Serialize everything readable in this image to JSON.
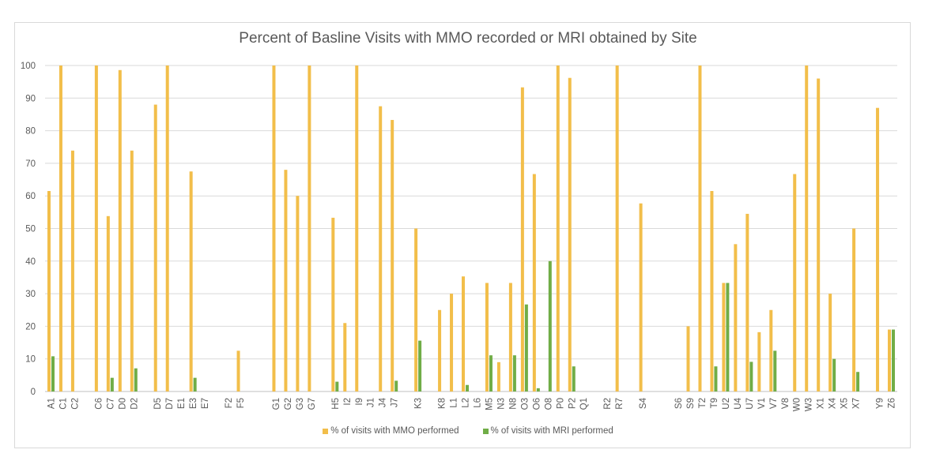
{
  "chart_data": {
    "type": "bar",
    "title": "Percent of Basline Visits with MMO recorded or MRI obtained by Site",
    "xlabel": "",
    "ylabel": "",
    "ylim": [
      0,
      100
    ],
    "yticks": [
      "0",
      "10",
      "20",
      "30",
      "40",
      "50",
      "60",
      "70",
      "80",
      "90",
      "100"
    ],
    "grid": true,
    "legend_position": "bottom",
    "categories": [
      "A1",
      "C1",
      "C2",
      "",
      "C6",
      "C7",
      "D0",
      "D2",
      "",
      "D5",
      "D7",
      "E1",
      "E3",
      "E7",
      "",
      "F2",
      "F5",
      "",
      "",
      "G1",
      "G2",
      "G3",
      "G7",
      "",
      "H5",
      "I2",
      "I9",
      "J1",
      "J4",
      "J7",
      "",
      "K3",
      "",
      "K8",
      "L1",
      "L2",
      "L6",
      "M5",
      "N3",
      "N8",
      "O3",
      "O6",
      "O8",
      "P0",
      "P2",
      "Q1",
      "",
      "R2",
      "R7",
      "",
      "S4",
      "",
      "",
      "S6",
      "S9",
      "T2",
      "T9",
      "U2",
      "U4",
      "U7",
      "V1",
      "V7",
      "V8",
      "W0",
      "W3",
      "X1",
      "X4",
      "X5",
      "X7",
      "",
      "Y9",
      "Z6"
    ],
    "series": [
      {
        "name": "% of visits with MMO performed",
        "color": "#F2BE4A",
        "values": [
          61.5,
          100,
          73.9,
          null,
          100,
          53.8,
          98.6,
          73.9,
          null,
          88,
          100,
          0,
          67.5,
          0,
          null,
          0,
          12.5,
          null,
          null,
          100,
          68,
          60,
          100,
          null,
          53.3,
          21,
          100,
          0,
          87.5,
          83.3,
          null,
          50,
          null,
          25,
          30,
          35.3,
          0,
          33.3,
          9,
          33.3,
          93.3,
          66.7,
          0,
          100,
          96.2,
          0,
          null,
          0,
          100,
          null,
          57.7,
          null,
          null,
          0,
          20,
          100,
          61.5,
          33.3,
          45.2,
          54.5,
          18.2,
          25,
          0,
          66.7,
          100,
          96,
          30,
          0,
          50,
          null,
          87,
          19
        ]
      },
      {
        "name": "% of visits with MRI performed",
        "color": "#70AD47",
        "values": [
          10.8,
          0,
          0,
          null,
          0,
          4.2,
          0,
          7.1,
          null,
          0,
          0,
          0,
          4.2,
          0,
          null,
          0,
          0,
          null,
          null,
          0,
          0,
          0,
          0,
          null,
          3,
          0,
          0,
          0,
          0,
          3.3,
          null,
          15.6,
          null,
          0,
          0,
          2,
          0,
          11.1,
          0,
          11.1,
          26.7,
          1,
          40,
          0,
          7.7,
          0,
          null,
          0,
          0,
          null,
          0,
          null,
          null,
          0,
          0,
          0,
          7.7,
          33.3,
          0,
          9.1,
          0,
          12.5,
          0,
          0,
          0,
          0,
          10,
          0,
          6,
          null,
          0,
          19
        ]
      }
    ]
  }
}
